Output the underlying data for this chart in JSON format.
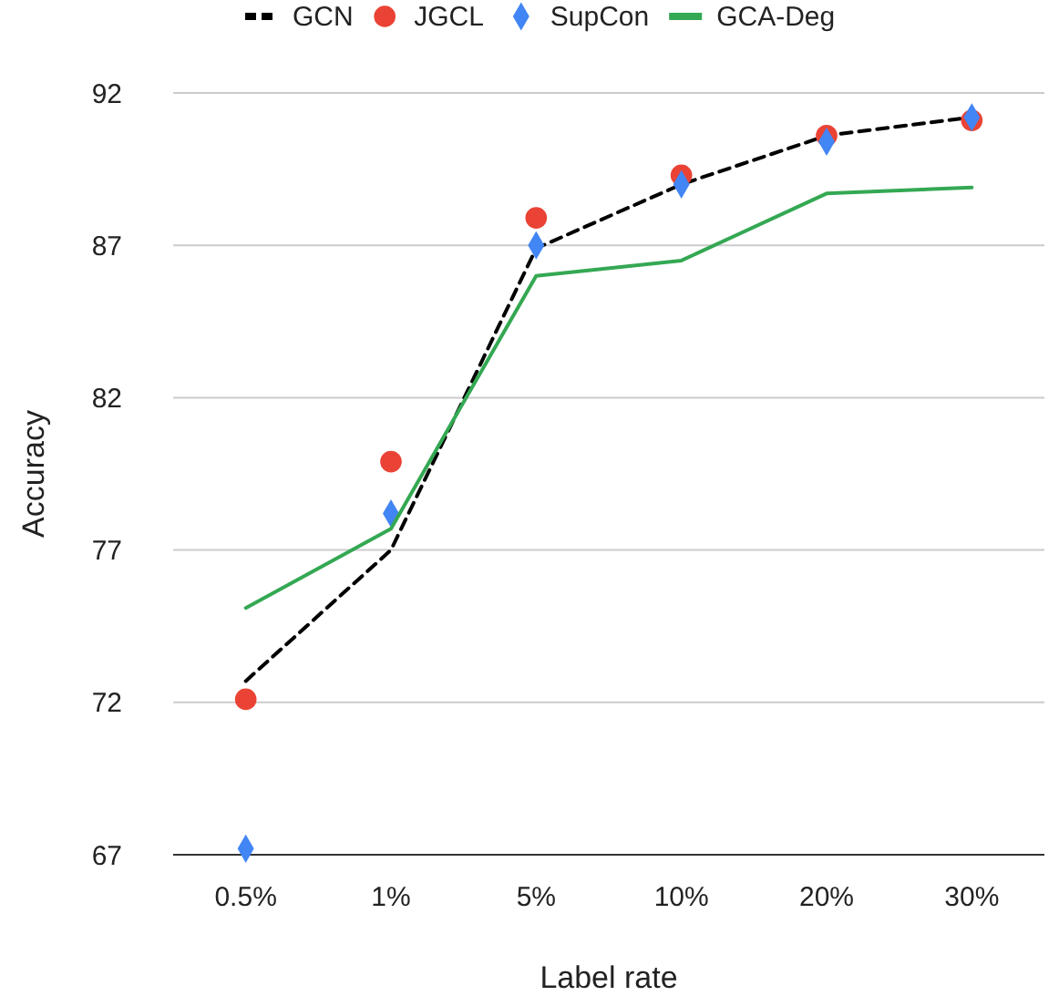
{
  "chart_data": {
    "type": "line",
    "xlabel": "Label rate",
    "ylabel": "Accuracy",
    "categories": [
      "0.5%",
      "1%",
      "5%",
      "10%",
      "20%",
      "30%"
    ],
    "ylim": [
      67,
      92
    ],
    "yticks": [
      67,
      72,
      77,
      82,
      87,
      92
    ],
    "grid": "y",
    "legend": "top",
    "series": [
      {
        "name": "GCN",
        "color": "#000000",
        "line_style": "dashed",
        "marker": "none",
        "values": [
          72.7,
          77.0,
          86.9,
          89.0,
          90.6,
          91.2
        ]
      },
      {
        "name": "JGCL",
        "type": "scatter",
        "color": "#ea4335",
        "marker": "circle",
        "values": [
          72.1,
          79.9,
          87.9,
          89.3,
          90.6,
          91.1
        ]
      },
      {
        "name": "SupCon",
        "type": "scatter",
        "color": "#4285f4",
        "marker": "diamond",
        "values": [
          67.2,
          78.2,
          87.0,
          89.0,
          90.4,
          91.2
        ]
      },
      {
        "name": "GCA-Deg",
        "color": "#34a853",
        "line_style": "solid",
        "marker": "none",
        "values": [
          75.1,
          77.7,
          86.0,
          86.5,
          88.7,
          88.9
        ]
      }
    ]
  }
}
